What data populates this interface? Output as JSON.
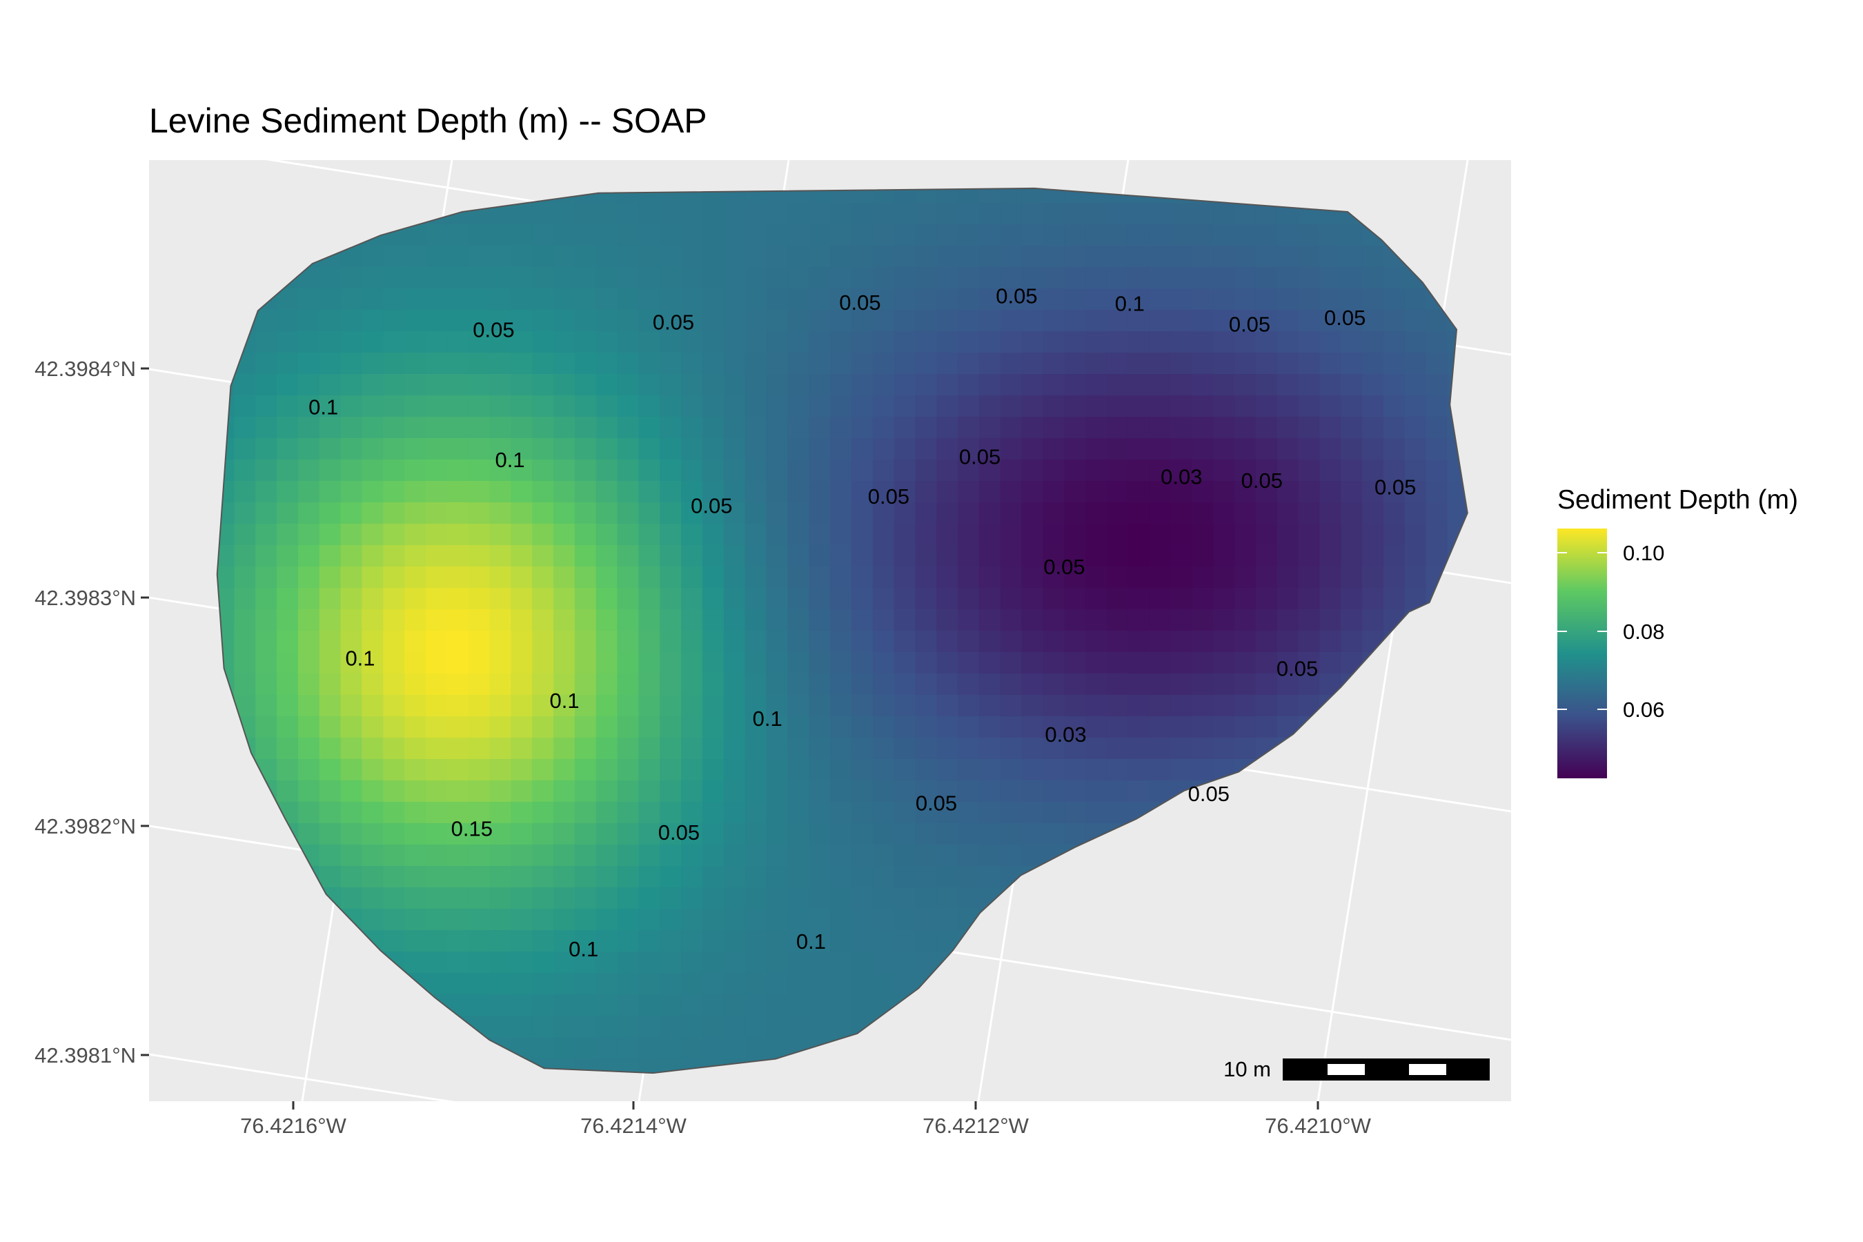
{
  "title": "Levine Sediment Depth (m) -- SOAP",
  "chart_data": {
    "type": "heatmap",
    "title": "Levine Sediment Depth (m) -- SOAP",
    "x_axis": {
      "ticks": [
        "76.4216°W",
        "76.4214°W",
        "76.4212°W",
        "76.4210°W"
      ]
    },
    "y_axis": {
      "ticks": [
        "42.3984°N",
        "42.3983°N",
        "42.3982°N",
        "42.3981°N"
      ]
    },
    "grid": true,
    "legend": {
      "title": "Sediment Depth (m)",
      "position": "right",
      "ticks": [
        "0.10",
        "0.08",
        "0.06"
      ],
      "range": [
        0.042,
        0.108
      ],
      "colormap": [
        "#440154",
        "#3b528b",
        "#21918c",
        "#5ec962",
        "#fde725"
      ]
    },
    "contour_labels": [
      {
        "text": "0.05",
        "x": 0.253,
        "y": 0.82
      },
      {
        "text": "0.05",
        "x": 0.385,
        "y": 0.828
      },
      {
        "text": "0.05",
        "x": 0.522,
        "y": 0.849
      },
      {
        "text": "0.05",
        "x": 0.637,
        "y": 0.856
      },
      {
        "text": "0.1",
        "x": 0.72,
        "y": 0.848
      },
      {
        "text": "0.05",
        "x": 0.808,
        "y": 0.826
      },
      {
        "text": "0.05",
        "x": 0.878,
        "y": 0.833
      },
      {
        "text": "0.1",
        "x": 0.128,
        "y": 0.738
      },
      {
        "text": "0.1",
        "x": 0.265,
        "y": 0.682
      },
      {
        "text": "0.05",
        "x": 0.413,
        "y": 0.633
      },
      {
        "text": "0.05",
        "x": 0.543,
        "y": 0.643
      },
      {
        "text": "0.05",
        "x": 0.61,
        "y": 0.685
      },
      {
        "text": "0.03",
        "x": 0.758,
        "y": 0.664
      },
      {
        "text": "0.05",
        "x": 0.817,
        "y": 0.66
      },
      {
        "text": "0.05",
        "x": 0.915,
        "y": 0.653
      },
      {
        "text": "0.05",
        "x": 0.672,
        "y": 0.568
      },
      {
        "text": "0.1",
        "x": 0.155,
        "y": 0.471
      },
      {
        "text": "0.1",
        "x": 0.305,
        "y": 0.426
      },
      {
        "text": "0.1",
        "x": 0.454,
        "y": 0.407
      },
      {
        "text": "0.05",
        "x": 0.843,
        "y": 0.46
      },
      {
        "text": "0.03",
        "x": 0.673,
        "y": 0.39
      },
      {
        "text": "0.05",
        "x": 0.778,
        "y": 0.327
      },
      {
        "text": "0.05",
        "x": 0.578,
        "y": 0.317
      },
      {
        "text": "0.15",
        "x": 0.237,
        "y": 0.29
      },
      {
        "text": "0.05",
        "x": 0.389,
        "y": 0.286
      },
      {
        "text": "0.1",
        "x": 0.319,
        "y": 0.162
      },
      {
        "text": "0.1",
        "x": 0.486,
        "y": 0.17
      }
    ],
    "field_centers": [
      {
        "x": 0.225,
        "y": 0.478,
        "value": 0.108
      },
      {
        "x": 0.73,
        "y": 0.593,
        "value": 0.042
      }
    ],
    "scale_bar": "10 m"
  },
  "legend_colors": {
    "panel_background": "#ebebeb",
    "grid_line": "#ffffff",
    "outline": "#555555"
  }
}
